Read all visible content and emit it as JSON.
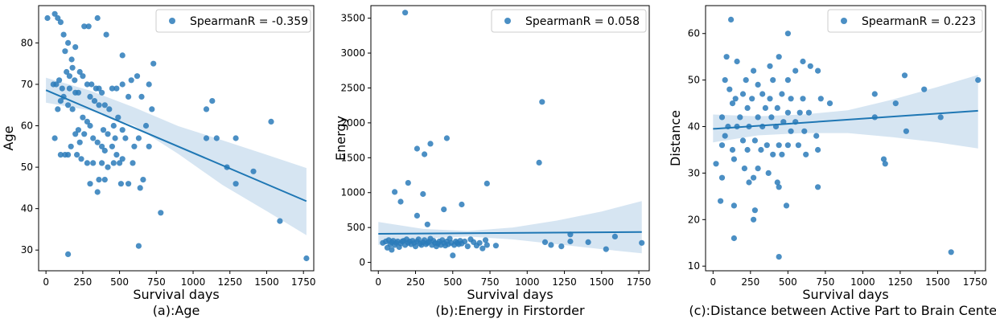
{
  "figure": {
    "captions": [
      "(a):Age",
      "(b):Energy in Firstorder",
      "(c):Distance between Active Part to Brain Center"
    ]
  },
  "colors": {
    "points": "#2b7bba",
    "line": "#1f77b4",
    "band": "#cfe0f0"
  },
  "chart_data": [
    {
      "type": "scatter",
      "caption": "(a):Age",
      "xlabel": "Survival days",
      "ylabel": "Age",
      "xlim": [
        -50,
        1820
      ],
      "ylim": [
        25,
        89
      ],
      "xticks": [
        0,
        250,
        500,
        750,
        1000,
        1250,
        1500,
        1750
      ],
      "yticks": [
        30,
        40,
        50,
        60,
        70,
        80
      ],
      "legend": {
        "label": "SpearmanR = -0.359",
        "position": "top-right"
      },
      "regression": {
        "x": [
          0,
          1770
        ],
        "y": [
          68.6,
          41.8
        ]
      },
      "band": {
        "x": [
          0,
          300,
          600,
          900,
          1200,
          1500,
          1770
        ],
        "lower": [
          65.6,
          63.7,
          60.0,
          53.2,
          45.7,
          39.4,
          33.6
        ],
        "upper": [
          71.6,
          68.5,
          64.4,
          59.9,
          56.5,
          53.0,
          49.8
        ]
      },
      "points": [
        [
          10,
          86
        ],
        [
          60,
          87
        ],
        [
          80,
          86
        ],
        [
          100,
          85
        ],
        [
          120,
          82
        ],
        [
          150,
          80
        ],
        [
          130,
          78
        ],
        [
          175,
          76
        ],
        [
          180,
          74
        ],
        [
          200,
          79
        ],
        [
          140,
          73
        ],
        [
          160,
          72
        ],
        [
          195,
          71
        ],
        [
          90,
          71
        ],
        [
          50,
          70
        ],
        [
          70,
          70
        ],
        [
          110,
          69
        ],
        [
          160,
          69
        ],
        [
          200,
          68
        ],
        [
          220,
          68
        ],
        [
          120,
          67
        ],
        [
          100,
          66
        ],
        [
          150,
          65
        ],
        [
          180,
          64
        ],
        [
          80,
          64
        ],
        [
          260,
          84
        ],
        [
          290,
          84
        ],
        [
          350,
          86
        ],
        [
          410,
          82
        ],
        [
          230,
          73
        ],
        [
          250,
          72
        ],
        [
          280,
          70
        ],
        [
          310,
          70
        ],
        [
          340,
          69
        ],
        [
          360,
          69
        ],
        [
          380,
          68
        ],
        [
          300,
          67
        ],
        [
          330,
          66
        ],
        [
          360,
          65
        ],
        [
          400,
          65
        ],
        [
          430,
          64
        ],
        [
          250,
          62
        ],
        [
          280,
          61
        ],
        [
          300,
          60
        ],
        [
          220,
          59
        ],
        [
          260,
          58
        ],
        [
          320,
          57
        ],
        [
          350,
          56
        ],
        [
          380,
          55
        ],
        [
          200,
          58
        ],
        [
          230,
          56
        ],
        [
          170,
          55
        ],
        [
          150,
          53
        ],
        [
          130,
          53
        ],
        [
          100,
          53
        ],
        [
          60,
          57
        ],
        [
          210,
          53
        ],
        [
          240,
          52
        ],
        [
          280,
          51
        ],
        [
          320,
          51
        ],
        [
          380,
          51
        ],
        [
          420,
          50
        ],
        [
          460,
          51
        ],
        [
          500,
          51
        ],
        [
          400,
          54
        ],
        [
          450,
          55
        ],
        [
          470,
          57
        ],
        [
          420,
          58
        ],
        [
          390,
          59
        ],
        [
          460,
          60
        ],
        [
          490,
          62
        ],
        [
          520,
          59
        ],
        [
          540,
          57
        ],
        [
          480,
          53
        ],
        [
          360,
          47
        ],
        [
          400,
          47
        ],
        [
          350,
          44
        ],
        [
          300,
          46
        ],
        [
          510,
          46
        ],
        [
          560,
          46
        ],
        [
          520,
          52
        ],
        [
          590,
          51
        ],
        [
          600,
          55
        ],
        [
          630,
          57
        ],
        [
          660,
          47
        ],
        [
          640,
          45
        ],
        [
          450,
          69
        ],
        [
          480,
          69
        ],
        [
          520,
          70
        ],
        [
          560,
          67
        ],
        [
          520,
          77
        ],
        [
          580,
          71
        ],
        [
          620,
          72
        ],
        [
          650,
          67
        ],
        [
          700,
          70
        ],
        [
          680,
          60
        ],
        [
          720,
          64
        ],
        [
          700,
          55
        ],
        [
          730,
          75
        ],
        [
          780,
          39
        ],
        [
          150,
          29
        ],
        [
          630,
          31
        ],
        [
          1090,
          64
        ],
        [
          1130,
          66
        ],
        [
          1090,
          57
        ],
        [
          1160,
          57
        ],
        [
          1290,
          57
        ],
        [
          1230,
          50
        ],
        [
          1290,
          46
        ],
        [
          1410,
          49
        ],
        [
          1530,
          61
        ],
        [
          1590,
          37
        ],
        [
          1770,
          28
        ]
      ]
    },
    {
      "type": "scatter",
      "caption": "(b):Energy in Firstorder",
      "xlabel": "Survival days",
      "ylabel": "Energy",
      "xlim": [
        -50,
        1820
      ],
      "ylim": [
        -120,
        3680
      ],
      "xticks": [
        0,
        250,
        500,
        750,
        1000,
        1250,
        1500,
        1750
      ],
      "yticks": [
        0,
        500,
        1000,
        1500,
        2000,
        2500,
        3000,
        3500
      ],
      "legend": {
        "label": "SpearmanR = 0.058",
        "position": "top-right"
      },
      "regression": {
        "x": [
          0,
          1770
        ],
        "y": [
          410,
          435
        ]
      },
      "band": {
        "x": [
          0,
          300,
          600,
          900,
          1200,
          1500,
          1770
        ],
        "lower": [
          250,
          340,
          370,
          330,
          260,
          190,
          130
        ],
        "upper": [
          580,
          480,
          450,
          500,
          600,
          730,
          880
        ]
      },
      "points": [
        [
          180,
          3580
        ],
        [
          1100,
          2300
        ],
        [
          460,
          1780
        ],
        [
          260,
          1630
        ],
        [
          350,
          1700
        ],
        [
          310,
          1550
        ],
        [
          1080,
          1430
        ],
        [
          200,
          1140
        ],
        [
          730,
          1130
        ],
        [
          110,
          1010
        ],
        [
          300,
          980
        ],
        [
          150,
          870
        ],
        [
          560,
          830
        ],
        [
          260,
          670
        ],
        [
          440,
          760
        ],
        [
          330,
          545
        ],
        [
          30,
          280
        ],
        [
          50,
          300
        ],
        [
          70,
          320
        ],
        [
          80,
          260
        ],
        [
          90,
          290
        ],
        [
          100,
          310
        ],
        [
          110,
          250
        ],
        [
          120,
          280
        ],
        [
          130,
          300
        ],
        [
          140,
          220
        ],
        [
          150,
          270
        ],
        [
          160,
          300
        ],
        [
          170,
          310
        ],
        [
          180,
          250
        ],
        [
          190,
          330
        ],
        [
          200,
          280
        ],
        [
          210,
          300
        ],
        [
          220,
          260
        ],
        [
          230,
          310
        ],
        [
          240,
          280
        ],
        [
          250,
          230
        ],
        [
          260,
          300
        ],
        [
          270,
          330
        ],
        [
          280,
          270
        ],
        [
          290,
          250
        ],
        [
          300,
          290
        ],
        [
          310,
          320
        ],
        [
          320,
          260
        ],
        [
          330,
          280
        ],
        [
          340,
          300
        ],
        [
          350,
          340
        ],
        [
          360,
          250
        ],
        [
          370,
          310
        ],
        [
          380,
          280
        ],
        [
          390,
          230
        ],
        [
          400,
          270
        ],
        [
          410,
          300
        ],
        [
          420,
          250
        ],
        [
          430,
          320
        ],
        [
          440,
          280
        ],
        [
          450,
          240
        ],
        [
          460,
          300
        ],
        [
          470,
          260
        ],
        [
          480,
          340
        ],
        [
          490,
          280
        ],
        [
          500,
          100
        ],
        [
          510,
          250
        ],
        [
          520,
          300
        ],
        [
          530,
          280
        ],
        [
          540,
          260
        ],
        [
          550,
          310
        ],
        [
          560,
          270
        ],
        [
          580,
          300
        ],
        [
          600,
          230
        ],
        [
          620,
          330
        ],
        [
          640,
          290
        ],
        [
          660,
          240
        ],
        [
          680,
          280
        ],
        [
          700,
          200
        ],
        [
          720,
          320
        ],
        [
          730,
          250
        ],
        [
          790,
          240
        ],
        [
          60,
          210
        ],
        [
          90,
          180
        ],
        [
          1120,
          290
        ],
        [
          1160,
          250
        ],
        [
          1230,
          230
        ],
        [
          1290,
          300
        ],
        [
          1290,
          400
        ],
        [
          1410,
          290
        ],
        [
          1530,
          190
        ],
        [
          1590,
          370
        ],
        [
          1770,
          280
        ]
      ]
    },
    {
      "type": "scatter",
      "caption": "(c):Distance between Active Part to Brain Center",
      "xlabel": "Survival days",
      "ylabel": "Distance",
      "xlim": [
        -50,
        1820
      ],
      "ylim": [
        9,
        66
      ],
      "xticks": [
        0,
        250,
        500,
        750,
        1000,
        1250,
        1500,
        1750
      ],
      "yticks": [
        10,
        20,
        30,
        40,
        50,
        60
      ],
      "legend": {
        "label": "SpearmanR = 0.223",
        "position": "top-right"
      },
      "regression": {
        "x": [
          0,
          1770
        ],
        "y": [
          39.5,
          43.4
        ]
      },
      "band": {
        "x": [
          0,
          300,
          600,
          900,
          1200,
          1500,
          1770
        ],
        "lower": [
          36.6,
          38.1,
          38.6,
          38.6,
          37.7,
          36.6,
          35.3
        ],
        "upper": [
          42.6,
          42.2,
          42.6,
          43.5,
          45.8,
          48.5,
          51.1
        ]
      },
      "points": [
        [
          120,
          63
        ],
        [
          500,
          60
        ],
        [
          90,
          55
        ],
        [
          440,
          55
        ],
        [
          600,
          54
        ],
        [
          160,
          54
        ],
        [
          380,
          53
        ],
        [
          650,
          53
        ],
        [
          550,
          52
        ],
        [
          700,
          52
        ],
        [
          270,
          52
        ],
        [
          220,
          50
        ],
        [
          500,
          50
        ],
        [
          300,
          49
        ],
        [
          400,
          50
        ],
        [
          80,
          50
        ],
        [
          110,
          48
        ],
        [
          200,
          47
        ],
        [
          330,
          47
        ],
        [
          460,
          47
        ],
        [
          150,
          46
        ],
        [
          260,
          46
        ],
        [
          380,
          46
        ],
        [
          520,
          46
        ],
        [
          600,
          46
        ],
        [
          720,
          46
        ],
        [
          780,
          45
        ],
        [
          130,
          45
        ],
        [
          230,
          44
        ],
        [
          350,
          44
        ],
        [
          430,
          44
        ],
        [
          500,
          43
        ],
        [
          580,
          43
        ],
        [
          640,
          43
        ],
        [
          60,
          42
        ],
        [
          180,
          42
        ],
        [
          300,
          42
        ],
        [
          390,
          42
        ],
        [
          470,
          41
        ],
        [
          550,
          41
        ],
        [
          100,
          40
        ],
        [
          160,
          40
        ],
        [
          240,
          40
        ],
        [
          330,
          40
        ],
        [
          420,
          40
        ],
        [
          520,
          39
        ],
        [
          610,
          39
        ],
        [
          690,
          38
        ],
        [
          80,
          38
        ],
        [
          200,
          37
        ],
        [
          280,
          37
        ],
        [
          360,
          36
        ],
        [
          440,
          36
        ],
        [
          500,
          36
        ],
        [
          570,
          36
        ],
        [
          130,
          35
        ],
        [
          230,
          35
        ],
        [
          320,
          35
        ],
        [
          400,
          34
        ],
        [
          460,
          34
        ],
        [
          620,
          34
        ],
        [
          700,
          35
        ],
        [
          60,
          36
        ],
        [
          140,
          33
        ],
        [
          210,
          31
        ],
        [
          300,
          31
        ],
        [
          370,
          30
        ],
        [
          270,
          29
        ],
        [
          20,
          32
        ],
        [
          60,
          29
        ],
        [
          430,
          28
        ],
        [
          240,
          28
        ],
        [
          440,
          27
        ],
        [
          700,
          27
        ],
        [
          50,
          24
        ],
        [
          490,
          23
        ],
        [
          280,
          22
        ],
        [
          140,
          23
        ],
        [
          270,
          20
        ],
        [
          140,
          16
        ],
        [
          440,
          12
        ],
        [
          1080,
          47
        ],
        [
          1080,
          42
        ],
        [
          1140,
          33
        ],
        [
          1150,
          32
        ],
        [
          1220,
          45
        ],
        [
          1280,
          51
        ],
        [
          1290,
          39
        ],
        [
          1410,
          48
        ],
        [
          1520,
          42
        ],
        [
          1590,
          13
        ],
        [
          1770,
          50
        ]
      ]
    }
  ]
}
